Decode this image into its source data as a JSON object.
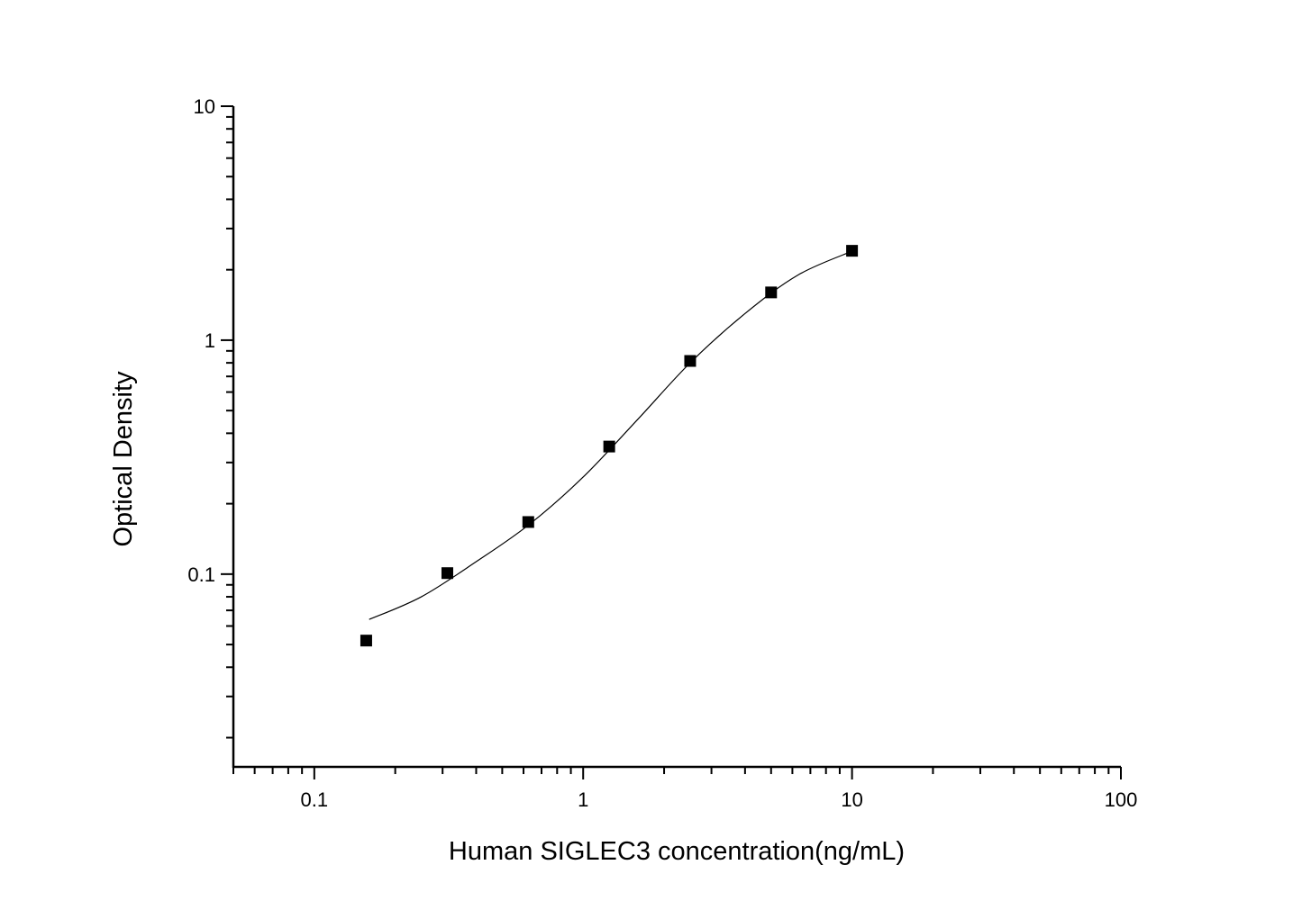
{
  "chart_data": {
    "type": "scatter",
    "title": "",
    "xlabel": "Human SIGLEC3 concentration(ng/mL)",
    "ylabel": "Optical Density",
    "xscale": "log",
    "yscale": "log",
    "xlim": [
      0.05,
      100
    ],
    "ylim": [
      0.015,
      10
    ],
    "xticks": [
      {
        "value": 0.1,
        "label": "0.1"
      },
      {
        "value": 1,
        "label": "1"
      },
      {
        "value": 10,
        "label": "10"
      },
      {
        "value": 100,
        "label": "100"
      }
    ],
    "yticks": [
      {
        "value": 0.1,
        "label": "0.1"
      },
      {
        "value": 1,
        "label": "1"
      },
      {
        "value": 10,
        "label": "10"
      }
    ],
    "grid": false,
    "legend": "none",
    "marker_color": "#000000",
    "series": [
      {
        "marker": "square",
        "x": [
          0.156,
          0.3125,
          0.625,
          1.25,
          2.5,
          5,
          10
        ],
        "y": [
          0.052,
          0.101,
          0.167,
          0.351,
          0.815,
          1.6,
          2.41
        ]
      }
    ],
    "fit_curve": {
      "x": [
        0.16,
        0.25,
        0.4,
        0.63,
        1.0,
        1.6,
        2.5,
        4.0,
        6.3,
        10
      ],
      "y": [
        0.064,
        0.08,
        0.113,
        0.163,
        0.26,
        0.46,
        0.8,
        1.3,
        1.9,
        2.4
      ]
    }
  }
}
